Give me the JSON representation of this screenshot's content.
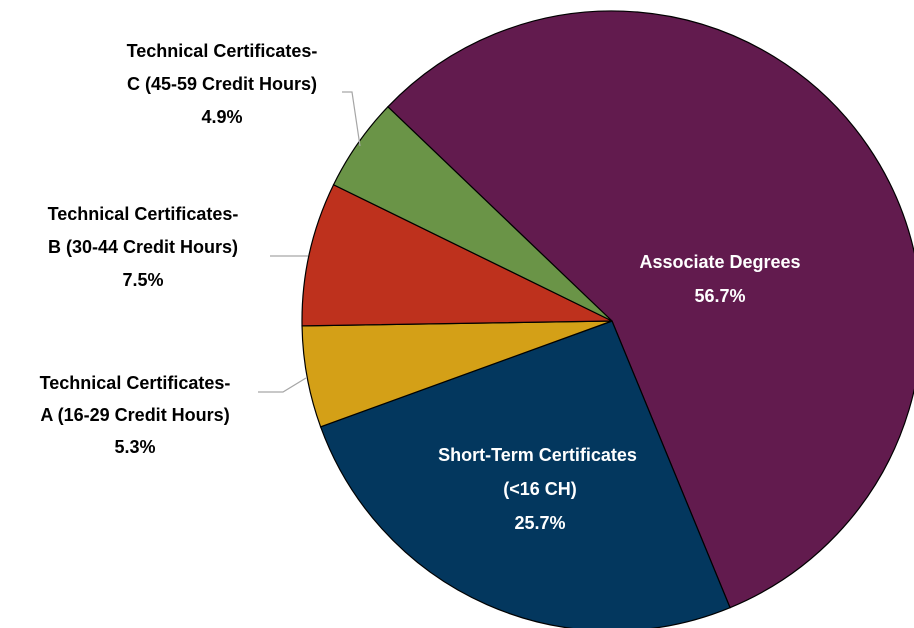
{
  "chart_data": {
    "type": "pie",
    "categories": [
      "Associate Degrees",
      "Short-Term Certificates (<16 CH)",
      "Technical Certificates-A (16-29 Credit Hours)",
      "Technical Certificates-B (30-44 Credit Hours)",
      "Technical Certificates-C (45-59 Credit Hours)"
    ],
    "values": [
      56.7,
      25.7,
      5.3,
      7.5,
      4.9
    ],
    "value_labels": [
      "56.7%",
      "25.7%",
      "5.3%",
      "7.5%",
      "4.9%"
    ],
    "colors": [
      "#621b4e",
      "#03375e",
      "#d4a017",
      "#be311d",
      "#6a9447"
    ],
    "label_colors": [
      "#ffffff",
      "#ffffff",
      "#000000",
      "#000000",
      "#000000"
    ]
  }
}
